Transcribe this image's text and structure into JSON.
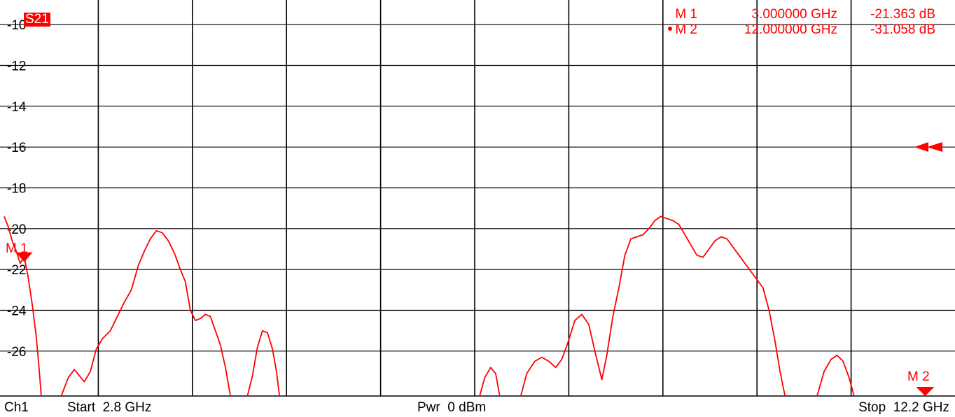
{
  "trace": {
    "label": "S21",
    "color": "#ff0000"
  },
  "markers": [
    {
      "name": "M 1",
      "freq": "3.000000 GHz",
      "value": "-21.363 dB",
      "active": false
    },
    {
      "name": "M 2",
      "freq": "12.000000 GHz",
      "value": "-31.058 dB",
      "active": true
    }
  ],
  "marker_tags": {
    "m1": "M 1",
    "m2": "M 2"
  },
  "footer": {
    "channel": "Ch1",
    "start": "Start  2.8 GHz",
    "power": "Pwr  0 dBm",
    "stop": "Stop  12.2 GHz"
  },
  "chart_data": {
    "type": "line",
    "title": "",
    "xlabel": "",
    "ylabel": "",
    "xlim": [
      2.8,
      12.2
    ],
    "ylim": [
      -28,
      -9
    ],
    "x_unit": "GHz",
    "y_unit": "dB",
    "yticks": [
      -10,
      -12,
      -14,
      -16,
      -18,
      -20,
      -22,
      -24,
      -26
    ],
    "ytick_labels": [
      "-10",
      "-12",
      "-14",
      "-16",
      "-18",
      "-20",
      "-22",
      "-24",
      "-26"
    ],
    "x_divisions": 10,
    "grid": true,
    "reference_level": -16,
    "series": [
      {
        "values_segments": [
          [
            [
              2.8,
              -19.4
            ],
            [
              2.84,
              -19.9
            ],
            [
              2.88,
              -20.6
            ],
            [
              2.92,
              -21.1
            ],
            [
              2.96,
              -21.7
            ],
            [
              3.0,
              -21.36
            ],
            [
              3.04,
              -22.4
            ],
            [
              3.08,
              -23.7
            ],
            [
              3.12,
              -25.3
            ],
            [
              3.15,
              -26.9
            ],
            [
              3.17,
              -28.2
            ]
          ],
          [
            [
              3.37,
              -28.2
            ],
            [
              3.44,
              -27.3
            ],
            [
              3.5,
              -26.9
            ],
            [
              3.55,
              -27.2
            ],
            [
              3.6,
              -27.5
            ],
            [
              3.66,
              -27.0
            ],
            [
              3.72,
              -25.9
            ],
            [
              3.78,
              -25.4
            ],
            [
              3.86,
              -25.0
            ],
            [
              3.93,
              -24.3
            ],
            [
              4.0,
              -23.6
            ],
            [
              4.07,
              -23.0
            ],
            [
              4.14,
              -21.8
            ],
            [
              4.2,
              -21.1
            ],
            [
              4.26,
              -20.5
            ],
            [
              4.32,
              -20.1
            ],
            [
              4.38,
              -20.2
            ],
            [
              4.44,
              -20.6
            ],
            [
              4.5,
              -21.2
            ],
            [
              4.56,
              -22.0
            ],
            [
              4.61,
              -22.6
            ],
            [
              4.66,
              -24.0
            ],
            [
              4.71,
              -24.5
            ],
            [
              4.76,
              -24.4
            ],
            [
              4.81,
              -24.2
            ],
            [
              4.86,
              -24.3
            ],
            [
              4.91,
              -25.0
            ],
            [
              4.96,
              -25.7
            ],
            [
              5.01,
              -26.8
            ],
            [
              5.06,
              -28.2
            ]
          ],
          [
            [
              5.23,
              -28.2
            ],
            [
              5.28,
              -27.2
            ],
            [
              5.33,
              -25.8
            ],
            [
              5.38,
              -25.0
            ],
            [
              5.43,
              -25.1
            ],
            [
              5.48,
              -25.9
            ],
            [
              5.52,
              -27.0
            ],
            [
              5.55,
              -28.2
            ]
          ],
          [
            [
              7.55,
              -28.2
            ],
            [
              7.6,
              -27.3
            ],
            [
              7.66,
              -26.8
            ],
            [
              7.71,
              -27.1
            ],
            [
              7.75,
              -28.2
            ]
          ],
          [
            [
              7.96,
              -28.2
            ],
            [
              8.02,
              -27.1
            ],
            [
              8.1,
              -26.5
            ],
            [
              8.17,
              -26.3
            ],
            [
              8.24,
              -26.5
            ],
            [
              8.31,
              -26.8
            ],
            [
              8.37,
              -26.4
            ],
            [
              8.43,
              -25.6
            ],
            [
              8.5,
              -24.5
            ],
            [
              8.57,
              -24.2
            ],
            [
              8.64,
              -24.7
            ],
            [
              8.7,
              -26.0
            ],
            [
              8.77,
              -27.4
            ],
            [
              8.82,
              -26.2
            ],
            [
              8.88,
              -24.3
            ],
            [
              8.94,
              -22.9
            ],
            [
              9.0,
              -21.3
            ],
            [
              9.06,
              -20.5
            ],
            [
              9.12,
              -20.4
            ],
            [
              9.18,
              -20.3
            ],
            [
              9.24,
              -20.0
            ],
            [
              9.3,
              -19.6
            ],
            [
              9.36,
              -19.4
            ],
            [
              9.42,
              -19.5
            ],
            [
              9.48,
              -19.6
            ],
            [
              9.54,
              -19.8
            ],
            [
              9.6,
              -20.3
            ],
            [
              9.66,
              -20.8
            ],
            [
              9.72,
              -21.3
            ],
            [
              9.78,
              -21.4
            ],
            [
              9.84,
              -21.0
            ],
            [
              9.9,
              -20.6
            ],
            [
              9.96,
              -20.4
            ],
            [
              10.02,
              -20.5
            ],
            [
              10.08,
              -20.9
            ],
            [
              10.14,
              -21.3
            ],
            [
              10.2,
              -21.7
            ],
            [
              10.26,
              -22.1
            ],
            [
              10.32,
              -22.5
            ],
            [
              10.38,
              -22.9
            ],
            [
              10.44,
              -24.0
            ],
            [
              10.5,
              -25.5
            ],
            [
              10.55,
              -27.0
            ],
            [
              10.6,
              -28.2
            ]
          ],
          [
            [
              10.92,
              -28.2
            ],
            [
              10.99,
              -27.0
            ],
            [
              11.06,
              -26.4
            ],
            [
              11.12,
              -26.2
            ],
            [
              11.18,
              -26.5
            ],
            [
              11.24,
              -27.3
            ],
            [
              11.29,
              -28.2
            ]
          ]
        ]
      }
    ]
  }
}
